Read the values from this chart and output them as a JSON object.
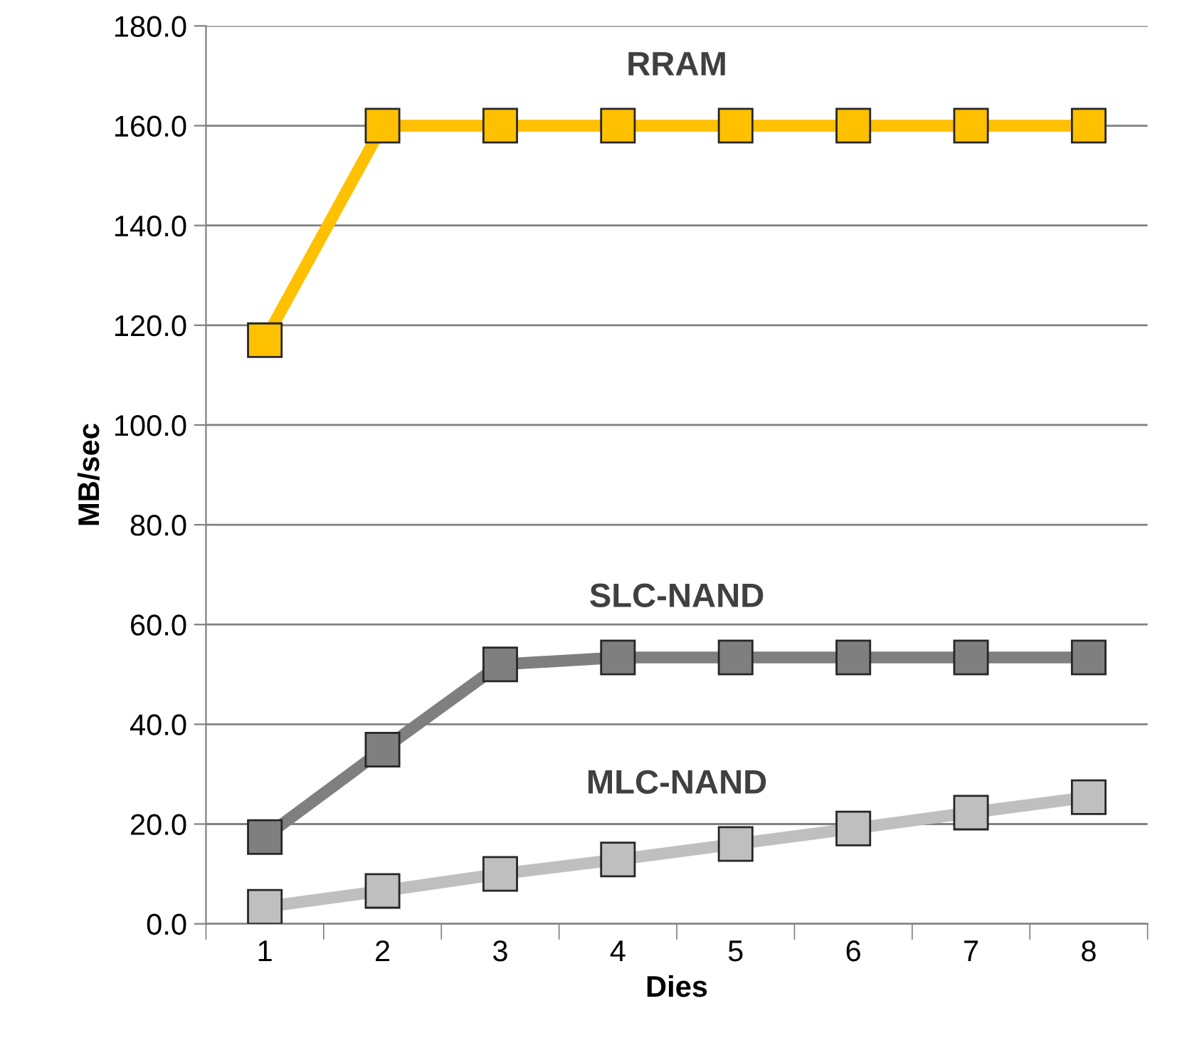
{
  "chart_data": {
    "type": "line",
    "xlabel": "Dies",
    "ylabel": "MB/sec",
    "categories": [
      "1",
      "2",
      "3",
      "4",
      "5",
      "6",
      "7",
      "8"
    ],
    "series": [
      {
        "name": "RRAM",
        "color": "#ffc000",
        "values": [
          117.0,
          160.0,
          160.0,
          160.0,
          160.0,
          160.0,
          160.0,
          160.0
        ]
      },
      {
        "name": "SLC-NAND",
        "color": "#7f7f7f",
        "values": [
          17.4,
          34.9,
          52.0,
          53.4,
          53.4,
          53.4,
          53.4,
          53.4
        ]
      },
      {
        "name": "MLC-NAND",
        "color": "#bfbfbf",
        "values": [
          3.4,
          6.6,
          10.0,
          12.9,
          16.0,
          19.1,
          22.3,
          25.4
        ]
      }
    ],
    "ylim": [
      0,
      180
    ],
    "yticks": [
      {
        "value": 0,
        "label": "0.0"
      },
      {
        "value": 20,
        "label": "20.0"
      },
      {
        "value": 40,
        "label": "40.0"
      },
      {
        "value": 60,
        "label": "60.0"
      },
      {
        "value": 80,
        "label": "80.0"
      },
      {
        "value": 100,
        "label": "100.0"
      },
      {
        "value": 120,
        "label": "120.0"
      },
      {
        "value": 140,
        "label": "140.0"
      },
      {
        "value": 160,
        "label": "160.0"
      },
      {
        "value": 180,
        "label": "180.0"
      }
    ],
    "grid": "y",
    "legend": false,
    "marker": "square",
    "line_style": "solid"
  }
}
